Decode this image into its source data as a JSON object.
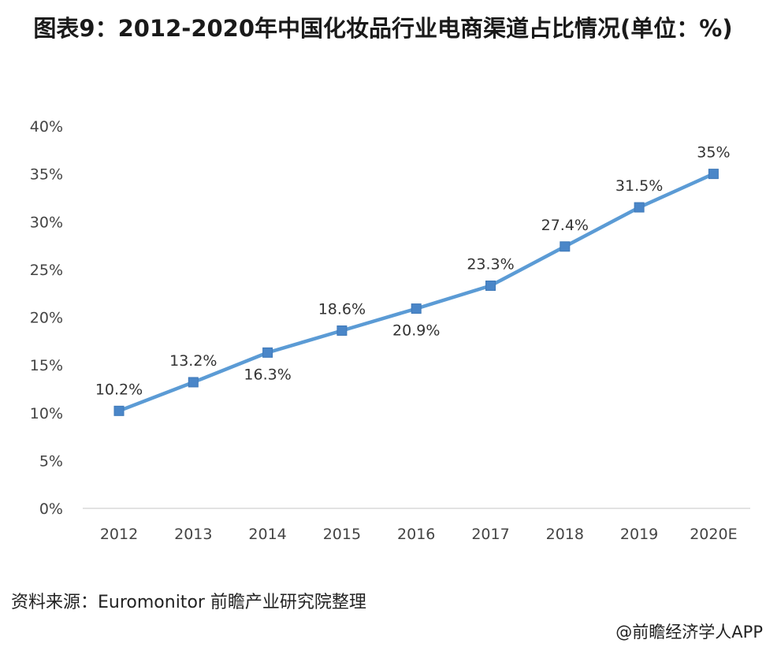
{
  "chart_data": {
    "type": "line",
    "title": "图表9：2012-2020年中国化妆品行业电商渠道占比情况(单位：%)",
    "categories": [
      "2012",
      "2013",
      "2014",
      "2015",
      "2016",
      "2017",
      "2018",
      "2019",
      "2020E"
    ],
    "series": [
      {
        "values": [
          10.2,
          13.2,
          16.3,
          18.6,
          20.9,
          23.3,
          27.4,
          31.5,
          35
        ],
        "labels": [
          "10.2%",
          "13.2%",
          "16.3%",
          "18.6%",
          "20.9%",
          "23.3%",
          "27.4%",
          "31.5%",
          "35%"
        ]
      }
    ],
    "yticks": [
      "0%",
      "5%",
      "10%",
      "15%",
      "20%",
      "25%",
      "30%",
      "35%",
      "40%"
    ],
    "ylim": [
      0,
      40
    ],
    "grid": false,
    "legend": "none",
    "colors": {
      "line": "#5b9bd5",
      "marker": "#4a86c8"
    }
  },
  "source": "资料来源：Euromonitor 前瞻产业研究院整理",
  "brand": "@前瞻经济学人APP"
}
